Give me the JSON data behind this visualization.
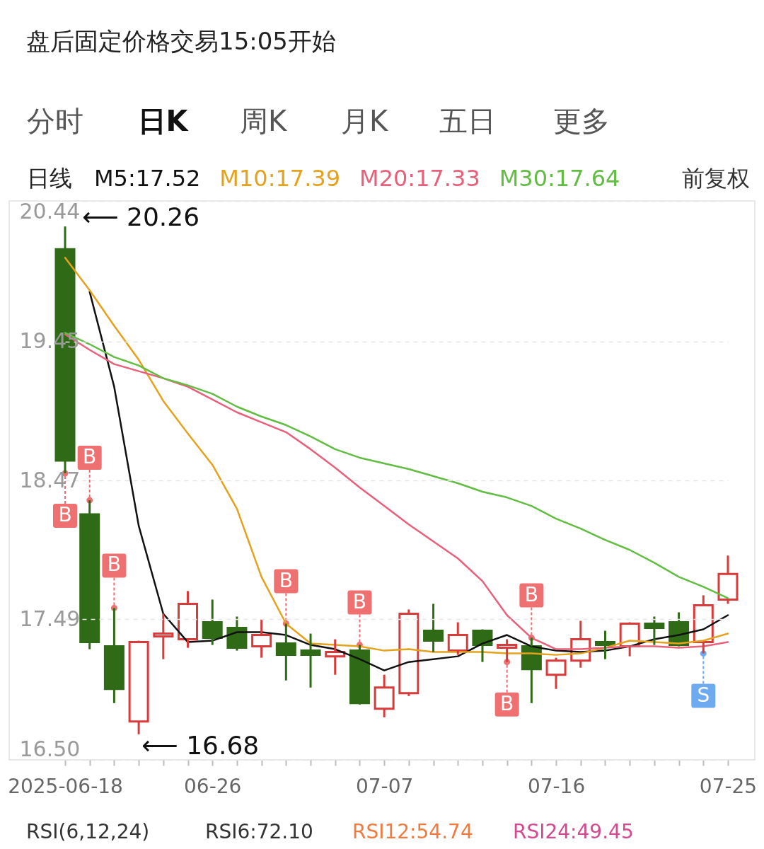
{
  "chart_data": {
    "type": "candlestick",
    "categories": [
      "2025-06-18",
      null,
      null,
      null,
      null,
      null,
      "06-26",
      null,
      null,
      null,
      null,
      null,
      null,
      "07-07",
      null,
      null,
      null,
      null,
      null,
      null,
      "07-16",
      null,
      null,
      null,
      null,
      null,
      null,
      "07-25"
    ],
    "ohlc": [
      [
        20.1,
        20.26,
        18.52,
        18.61
      ],
      [
        18.23,
        18.33,
        17.28,
        17.33
      ],
      [
        17.3,
        17.57,
        16.9,
        17.0
      ],
      [
        16.77,
        17.34,
        16.68,
        17.33
      ],
      [
        17.37,
        17.53,
        17.21,
        17.39
      ],
      [
        17.35,
        17.69,
        17.29,
        17.6
      ],
      [
        17.47,
        17.63,
        17.31,
        17.36
      ],
      [
        17.43,
        17.51,
        17.27,
        17.29
      ],
      [
        17.3,
        17.49,
        17.22,
        17.38
      ],
      [
        17.32,
        17.46,
        17.06,
        17.24
      ],
      [
        17.27,
        17.39,
        17.01,
        17.24
      ],
      [
        17.23,
        17.35,
        17.1,
        17.26
      ],
      [
        17.27,
        17.31,
        16.89,
        16.9
      ],
      [
        16.86,
        17.1,
        16.8,
        17.01
      ],
      [
        16.97,
        17.56,
        16.95,
        17.53
      ],
      [
        17.41,
        17.6,
        17.26,
        17.34
      ],
      [
        17.27,
        17.47,
        17.24,
        17.38
      ],
      [
        17.41,
        17.42,
        17.19,
        17.31
      ],
      [
        17.29,
        17.35,
        17.19,
        17.31
      ],
      [
        17.3,
        17.36,
        16.9,
        17.14
      ],
      [
        17.1,
        17.22,
        17.0,
        17.2
      ],
      [
        17.2,
        17.48,
        17.15,
        17.35
      ],
      [
        17.33,
        17.41,
        17.21,
        17.31
      ],
      [
        17.3,
        17.47,
        17.23,
        17.46
      ],
      [
        17.46,
        17.51,
        17.31,
        17.43
      ],
      [
        17.47,
        17.54,
        17.3,
        17.31
      ],
      [
        17.33,
        17.66,
        17.25,
        17.59
      ],
      [
        17.63,
        17.94,
        17.6,
        17.81
      ]
    ],
    "colors": [
      "#2f6b16",
      "#2f6b16",
      "#2f6b16",
      "#d93a3a",
      "#d93a3a",
      "#d93a3a",
      "#2f6b16",
      "#2f6b16",
      "#d93a3a",
      "#2f6b16",
      "#2f6b16",
      "#d93a3a",
      "#2f6b16",
      "#d93a3a",
      "#d93a3a",
      "#2f6b16",
      "#d93a3a",
      "#2f6b16",
      "#d93a3a",
      "#2f6b16",
      "#d93a3a",
      "#d93a3a",
      "#2f6b16",
      "#d93a3a",
      "#2f6b16",
      "#2f6b16",
      "#d93a3a",
      "#d93a3a"
    ],
    "series": [
      {
        "name": "M5:17.52",
        "type": "line",
        "color": "#111111",
        "values": [
          null,
          19.8,
          19.13,
          18.15,
          17.53,
          17.33,
          17.34,
          17.4,
          17.4,
          17.38,
          17.31,
          17.28,
          17.21,
          17.13,
          17.19,
          17.21,
          17.23,
          17.32,
          17.38,
          17.3,
          17.27,
          17.26,
          17.27,
          17.3,
          17.35,
          17.38,
          17.42,
          17.52
        ]
      },
      {
        "name": "M10:17.39",
        "type": "line",
        "color": "#e5a21d",
        "values": [
          20.04,
          19.81,
          19.56,
          19.32,
          19.03,
          18.8,
          18.58,
          18.27,
          17.79,
          17.46,
          17.32,
          17.31,
          17.3,
          17.27,
          17.28,
          17.26,
          17.26,
          17.26,
          17.25,
          17.25,
          17.24,
          17.25,
          17.29,
          17.34,
          17.33,
          17.32,
          17.34,
          17.39
        ]
      },
      {
        "name": "M20:17.33",
        "type": "line",
        "color": "#e8607a",
        "values": [
          19.5,
          19.39,
          19.29,
          19.24,
          19.19,
          19.13,
          19.04,
          18.95,
          18.88,
          18.81,
          18.69,
          18.56,
          18.42,
          18.29,
          18.16,
          18.04,
          17.92,
          17.76,
          17.52,
          17.36,
          17.28,
          17.28,
          17.29,
          17.3,
          17.3,
          17.29,
          17.3,
          17.33
        ]
      },
      {
        "name": "M30:17.64",
        "type": "line",
        "color": "#62bd42",
        "values": [
          19.51,
          19.43,
          19.34,
          19.28,
          19.19,
          19.14,
          19.08,
          18.99,
          18.92,
          18.86,
          18.78,
          18.69,
          18.63,
          18.59,
          18.55,
          18.5,
          18.45,
          18.39,
          18.35,
          18.29,
          18.2,
          18.13,
          18.05,
          17.98,
          17.89,
          17.79,
          17.72,
          17.64
        ]
      },
      {
        "type": "scatter",
        "color": "#ee7070",
        "values": [
          18.52,
          18.33,
          17.57,
          null,
          null,
          null,
          null,
          null,
          null,
          17.46,
          null,
          null,
          17.31,
          null,
          null,
          null,
          null,
          null,
          17.19,
          17.36,
          null,
          null,
          null,
          null,
          null,
          null,
          null,
          null
        ]
      },
      {
        "type": "scatter",
        "color": "#6eaaf0",
        "values": [
          null,
          null,
          null,
          null,
          null,
          null,
          null,
          null,
          null,
          null,
          null,
          null,
          null,
          null,
          null,
          null,
          null,
          null,
          null,
          null,
          null,
          null,
          null,
          null,
          null,
          null,
          17.25,
          null
        ]
      }
    ],
    "ylim": [
      16.5,
      20.44
    ],
    "yticks": [
      20.44,
      19.45,
      18.47,
      17.49,
      {
        "value": 16.5,
        "label": "16.50"
      }
    ],
    "grid": "y",
    "legend": "top left",
    "legend_title": "日线",
    "annotations": [
      {
        "text": "⟵ 20.26",
        "x": "2025-06-18",
        "y": 20.26
      },
      "⟵ 16.68",
      {
        "text": "B",
        "x": "2025-06-18",
        "y": 18.52
      },
      {
        "text": "B",
        "y": 18.33
      },
      {
        "text": "B",
        "y": 17.57
      },
      {
        "text": "B",
        "y": 17.46
      },
      {
        "text": "B",
        "y": 17.31
      },
      {
        "text": "B",
        "y": 17.19
      },
      {
        "text": "B",
        "y": 17.36
      },
      {
        "text": "S",
        "y": 17.25
      },
      "盘后固定价格交易15:05开始",
      "分时",
      "日K",
      "周K",
      "月K",
      "五日",
      "更多",
      "前复权",
      "RSI(6,12,24)",
      "RSI6:72.10",
      "RSI12:54.74",
      "RSI24:49.45"
    ]
  }
}
